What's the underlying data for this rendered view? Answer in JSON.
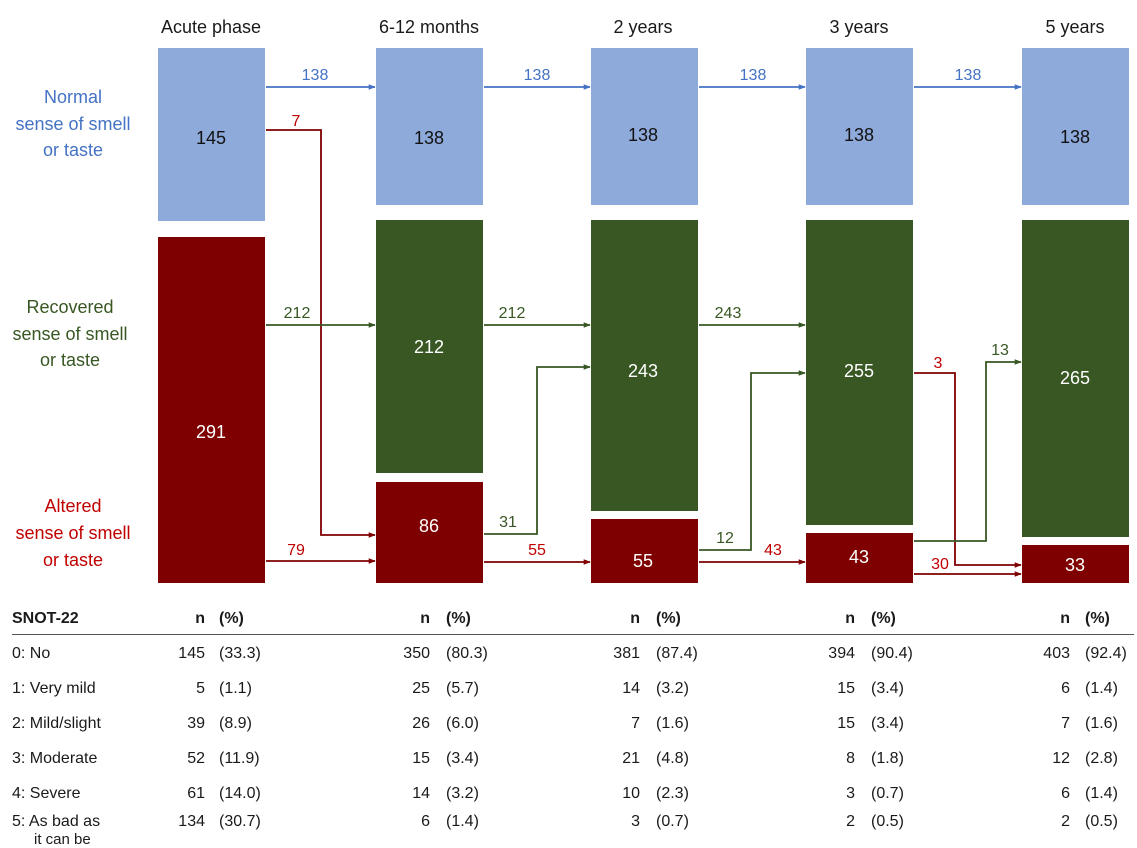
{
  "colors": {
    "normal": "#8eaadb",
    "recovered": "#385723",
    "altered": "#7f0000",
    "normal_text": "#4472c4",
    "recovered_text": "#385723",
    "altered_text": "#c00000"
  },
  "timepoints": [
    {
      "label": "Acute phase",
      "normal": "145",
      "recovered": "",
      "altered": "291"
    },
    {
      "label": "6-12 months",
      "normal": "138",
      "recovered": "212",
      "altered": "86"
    },
    {
      "label": "2 years",
      "normal": "138",
      "recovered": "243",
      "altered": "55"
    },
    {
      "label": "3 years",
      "normal": "138",
      "recovered": "255",
      "altered": "43"
    },
    {
      "label": "5 years",
      "normal": "138",
      "recovered": "265",
      "altered": "33"
    }
  ],
  "rows": [
    {
      "id": "normal",
      "label_lines": [
        "Normal",
        "sense of smell",
        "or taste"
      ]
    },
    {
      "id": "recovered",
      "label_lines": [
        "Recovered",
        "sense of smell",
        "or taste"
      ]
    },
    {
      "id": "altered",
      "label_lines": [
        "Altered",
        "sense of smell",
        "or taste"
      ]
    }
  ],
  "transitions": [
    {
      "from": "0.normal",
      "to": "1.normal",
      "value": "138",
      "kind": "normal"
    },
    {
      "from": "1.normal",
      "to": "2.normal",
      "value": "138",
      "kind": "normal"
    },
    {
      "from": "2.normal",
      "to": "3.normal",
      "value": "138",
      "kind": "normal"
    },
    {
      "from": "3.normal",
      "to": "4.normal",
      "value": "138",
      "kind": "normal"
    },
    {
      "from": "0.normal",
      "to": "1.altered",
      "value": "7",
      "kind": "altered"
    },
    {
      "from": "0.altered",
      "to": "1.recovered",
      "value": "212",
      "kind": "recovered"
    },
    {
      "from": "0.altered",
      "to": "1.altered",
      "value": "79",
      "kind": "altered"
    },
    {
      "from": "1.recovered",
      "to": "2.recovered",
      "value": "212",
      "kind": "recovered"
    },
    {
      "from": "1.altered",
      "to": "2.recovered",
      "value": "31",
      "kind": "recovered"
    },
    {
      "from": "1.altered",
      "to": "2.altered",
      "value": "55",
      "kind": "altered"
    },
    {
      "from": "2.recovered",
      "to": "3.recovered",
      "value": "243",
      "kind": "recovered"
    },
    {
      "from": "2.altered",
      "to": "3.recovered",
      "value": "12",
      "kind": "recovered"
    },
    {
      "from": "2.altered",
      "to": "3.altered",
      "value": "43",
      "kind": "altered"
    },
    {
      "from": "3.recovered",
      "to": "4.altered",
      "value": "3",
      "kind": "altered"
    },
    {
      "from": "3.altered",
      "to": "4.recovered",
      "value": "13",
      "kind": "recovered"
    },
    {
      "from": "3.altered",
      "to": "4.altered",
      "value": "30",
      "kind": "altered"
    }
  ],
  "snot": {
    "title": "SNOT-22",
    "n_header": "n",
    "pct_header": "(%)",
    "rows": [
      {
        "label": "0: No",
        "values": [
          [
            "145",
            "(33.3)"
          ],
          [
            "350",
            "(80.3)"
          ],
          [
            "381",
            "(87.4)"
          ],
          [
            "394",
            "(90.4)"
          ],
          [
            "403",
            "(92.4)"
          ]
        ]
      },
      {
        "label": "1: Very mild",
        "values": [
          [
            "5",
            "(1.1)"
          ],
          [
            "25",
            "(5.7)"
          ],
          [
            "14",
            "(3.2)"
          ],
          [
            "15",
            "(3.4)"
          ],
          [
            "6",
            "(1.4)"
          ]
        ]
      },
      {
        "label": "2: Mild/slight",
        "values": [
          [
            "39",
            "(8.9)"
          ],
          [
            "26",
            "(6.0)"
          ],
          [
            "7",
            "(1.6)"
          ],
          [
            "15",
            "(3.4)"
          ],
          [
            "7",
            "(1.6)"
          ]
        ]
      },
      {
        "label": "3: Moderate",
        "values": [
          [
            "52",
            "(11.9)"
          ],
          [
            "15",
            "(3.4)"
          ],
          [
            "21",
            "(4.8)"
          ],
          [
            "8",
            "(1.8)"
          ],
          [
            "12",
            "(2.8)"
          ]
        ]
      },
      {
        "label": "4: Severe",
        "values": [
          [
            "61",
            "(14.0)"
          ],
          [
            "14",
            "(3.2)"
          ],
          [
            "10",
            "(2.3)"
          ],
          [
            "3",
            "(0.7)"
          ],
          [
            "6",
            "(1.4)"
          ]
        ]
      },
      {
        "label": "5: As bad as it can be",
        "label_lines": [
          "5: As bad as",
          "it can be"
        ],
        "values": [
          [
            "134",
            "(30.7)"
          ],
          [
            "6",
            "(1.4)"
          ],
          [
            "3",
            "(0.7)"
          ],
          [
            "2",
            "(0.5)"
          ],
          [
            "2",
            "(0.5)"
          ]
        ]
      }
    ]
  }
}
